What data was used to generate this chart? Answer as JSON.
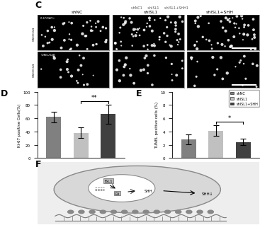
{
  "panel_C_label": "C",
  "panel_D_label": "D",
  "panel_E_label": "E",
  "panel_F_label": "F",
  "col_labels": [
    "shNC",
    "shISL1",
    "shISL1+SHH"
  ],
  "D_values": [
    62,
    38,
    66
  ],
  "D_errors": [
    8,
    8,
    14
  ],
  "D_ylabel": "Ki-67 positive Cells(%)",
  "D_ylim": [
    0,
    100
  ],
  "D_yticks": [
    0,
    20,
    40,
    60,
    80,
    100
  ],
  "D_colors": [
    "#808080",
    "#c0c0c0",
    "#404040"
  ],
  "E_values": [
    2.8,
    4.1,
    2.4
  ],
  "E_errors": [
    0.7,
    0.8,
    0.5
  ],
  "E_ylabel": "TUNEL positive cells (%)",
  "E_ylim": [
    0,
    10
  ],
  "E_yticks": [
    0,
    2,
    4,
    6,
    8,
    10
  ],
  "E_colors": [
    "#808080",
    "#c0c0c0",
    "#404040"
  ],
  "legend_labels": [
    "shNC",
    "shISL1",
    "shISL1+SHH"
  ],
  "legend_colors": [
    "#808080",
    "#c0c0c0",
    "#404040"
  ],
  "sig_D": "**",
  "sig_E": "*",
  "background_color": "#ffffff"
}
